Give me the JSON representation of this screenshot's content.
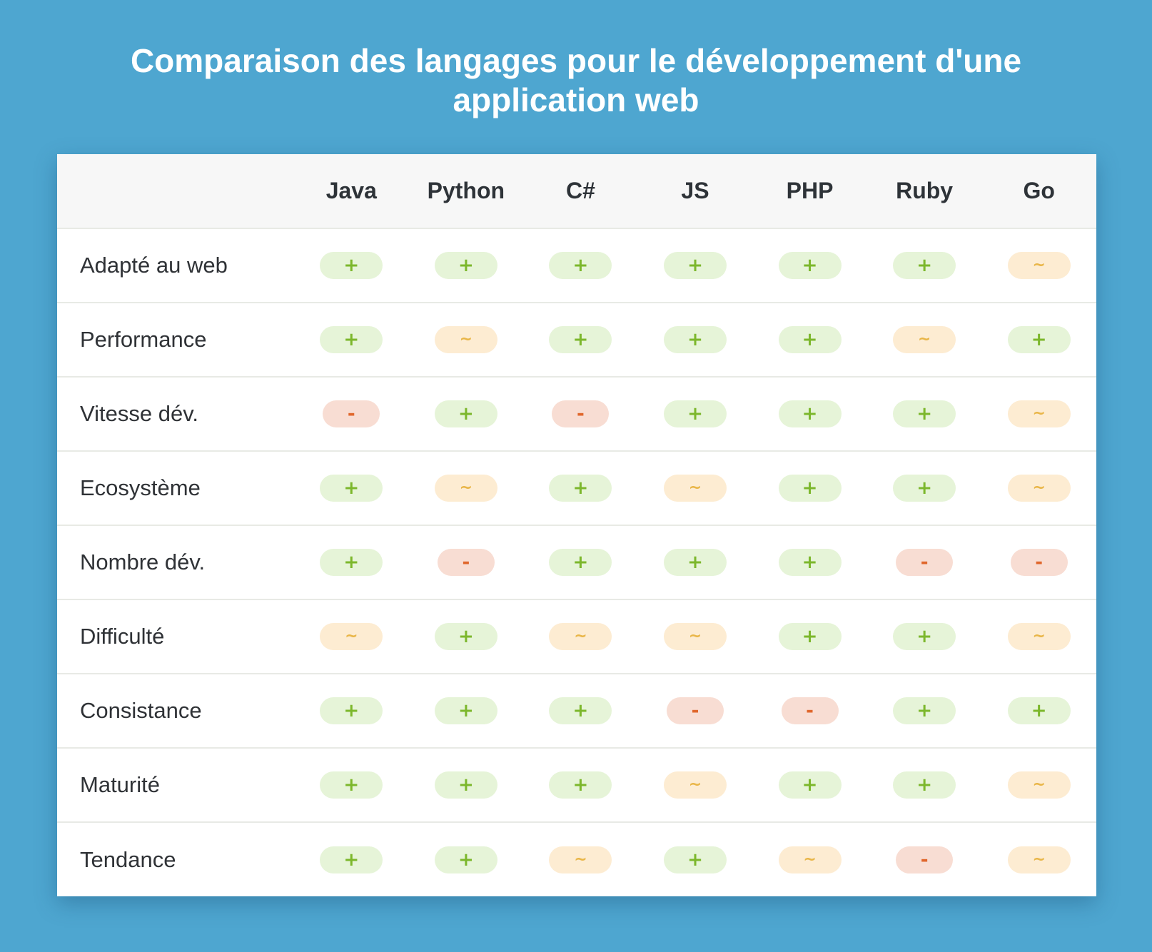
{
  "title": "Comparaison des langages pour le développement d'une application web",
  "table": {
    "corner": "",
    "columns": [
      "Java",
      "Python",
      "C#",
      "JS",
      "PHP",
      "Ruby",
      "Go"
    ],
    "rows": [
      {
        "label": "Adapté au web",
        "values": [
          "+",
          "+",
          "+",
          "+",
          "+",
          "+",
          "~"
        ]
      },
      {
        "label": "Performance",
        "values": [
          "+",
          "~",
          "+",
          "+",
          "+",
          "~",
          "+"
        ]
      },
      {
        "label": "Vitesse dév.",
        "values": [
          "-",
          "+",
          "-",
          "+",
          "+",
          "+",
          "~"
        ]
      },
      {
        "label": "Ecosystème",
        "values": [
          "+",
          "~",
          "+",
          "~",
          "+",
          "+",
          "~"
        ]
      },
      {
        "label": "Nombre dév.",
        "values": [
          "+",
          "-",
          "+",
          "+",
          "+",
          "-",
          "-"
        ]
      },
      {
        "label": "Difficulté",
        "values": [
          "~",
          "+",
          "~",
          "~",
          "+",
          "+",
          "~"
        ]
      },
      {
        "label": "Consistance",
        "values": [
          "+",
          "+",
          "+",
          "-",
          "-",
          "+",
          "+"
        ]
      },
      {
        "label": "Maturité",
        "values": [
          "+",
          "+",
          "+",
          "~",
          "+",
          "+",
          "~"
        ]
      },
      {
        "label": "Tendance",
        "values": [
          "+",
          "+",
          "~",
          "+",
          "~",
          "-",
          "~"
        ]
      }
    ]
  },
  "colors": {
    "background": "#4ea6d0",
    "positive": "#7cb72c",
    "neutral": "#e9b648",
    "negative": "#e0672c"
  }
}
